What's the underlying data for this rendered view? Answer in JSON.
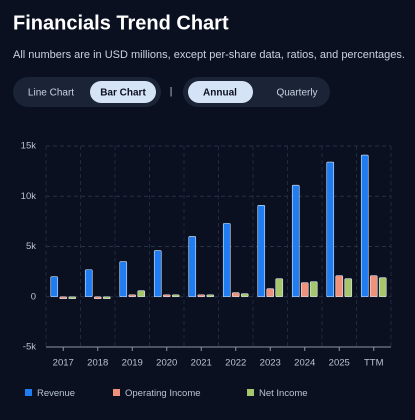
{
  "chart_data": {
    "type": "bar",
    "title": "Financials Trend Chart",
    "subtitle": "All numbers are in USD millions, except per-share data, ratios, and percentages.",
    "categories": [
      "2017",
      "2018",
      "2019",
      "2020",
      "2021",
      "2022",
      "2023",
      "2024",
      "2025",
      "TTM"
    ],
    "series": [
      {
        "name": "Revenue",
        "color": "#1f7cf2",
        "values": [
          2000,
          2700,
          3500,
          4600,
          6000,
          7300,
          9100,
          11100,
          13400,
          14100
        ]
      },
      {
        "name": "Operating Income",
        "color": "#f0917b",
        "values": [
          -200,
          -200,
          200,
          200,
          200,
          400,
          800,
          1400,
          2100,
          2100
        ]
      },
      {
        "name": "Net Income",
        "color": "#a6c66b",
        "values": [
          -200,
          -200,
          600,
          200,
          200,
          300,
          1800,
          1500,
          1800,
          1900
        ]
      }
    ],
    "ylim": [
      -5000,
      15000
    ],
    "yticks": [
      {
        "value": -5000,
        "label": "-5k"
      },
      0,
      {
        "value": 5000,
        "label": "5k"
      },
      {
        "value": 10000,
        "label": "10k"
      },
      {
        "value": 15000,
        "label": "15k"
      }
    ],
    "grid": true
  },
  "controls": {
    "chart_types": [
      "Line Chart",
      "Bar Chart"
    ],
    "separator": "|",
    "periods": [
      "Annual",
      "Quarterly"
    ]
  }
}
